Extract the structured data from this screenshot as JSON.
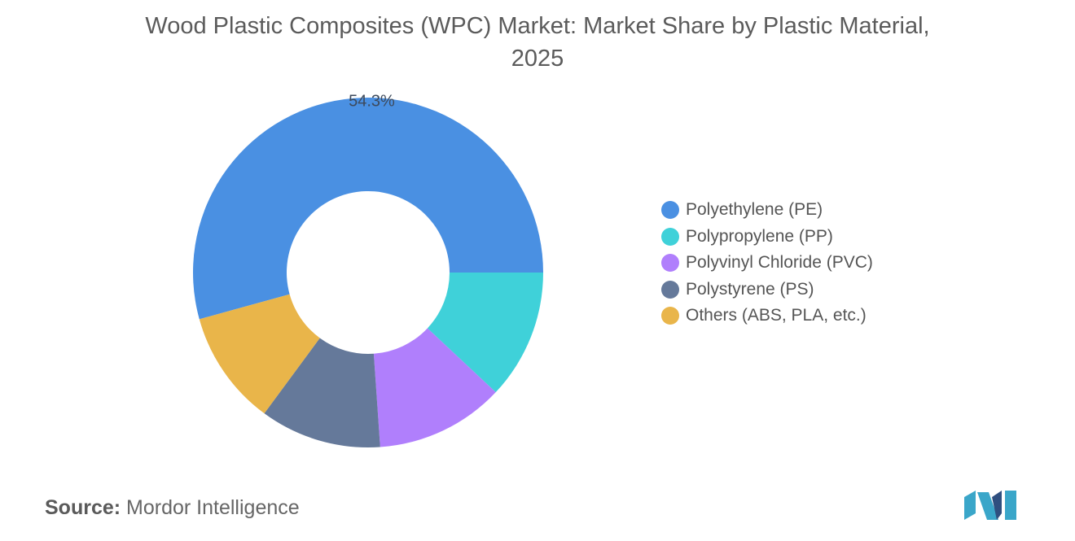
{
  "header": {
    "title_line1": "Wood Plastic Composites (WPC) Market: Market Share by Plastic Material,",
    "title_line2": "2025"
  },
  "chart_data": {
    "type": "pie",
    "variant": "donut",
    "title": "Wood Plastic Composites (WPC) Market: Market Share by Plastic Material, 2025",
    "categories": [
      "Polyethylene (PE)",
      "Polypropylene (PP)",
      "Polyvinyl Chloride (PVC)",
      "Polystyrene (PS)",
      "Others (ABS, PLA, etc.)"
    ],
    "values": [
      54.3,
      12.0,
      11.9,
      11.2,
      10.6
    ],
    "value_labels": [
      "54.3%",
      "",
      "",
      "",
      ""
    ],
    "colors": [
      "#4a90e2",
      "#3fd1d9",
      "#b07ffc",
      "#65799a",
      "#e9b54a"
    ],
    "legend_position": "right"
  },
  "source": {
    "label": "Source:",
    "text": "Mordor Intelligence"
  },
  "logo": {
    "colors": [
      "#2f4f7f",
      "#3aa6c9"
    ]
  }
}
